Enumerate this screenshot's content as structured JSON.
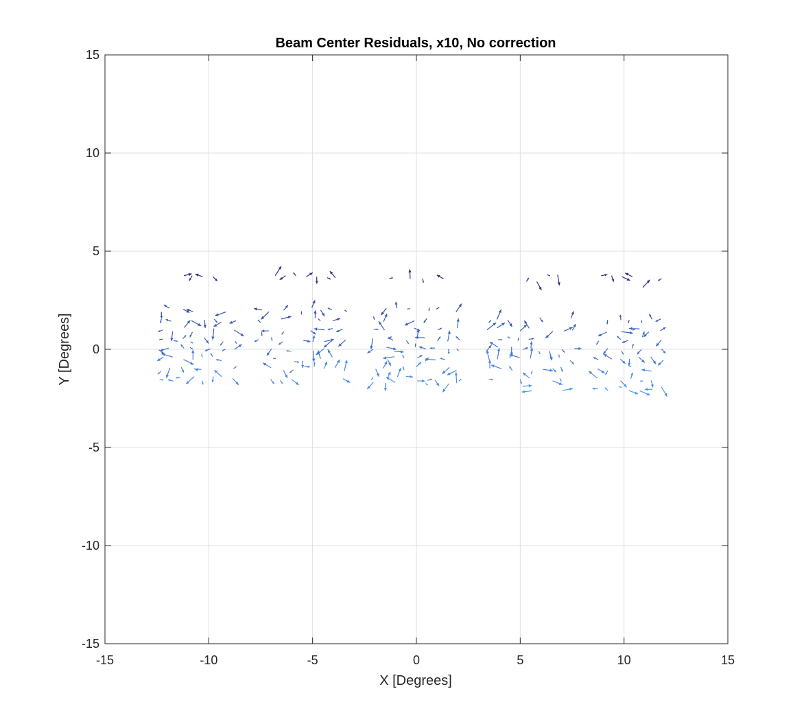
{
  "chart_data": {
    "type": "quiver",
    "title": "Beam Center Residuals, x10, No correction",
    "xlabel": "X [Degrees]",
    "ylabel": "Y [Degrees]",
    "xlim": [
      -15,
      15
    ],
    "ylim": [
      -15,
      15
    ],
    "xticks": [
      -15,
      -10,
      -5,
      0,
      5,
      10,
      15
    ],
    "yticks": [
      -15,
      -10,
      -5,
      0,
      5,
      10,
      15
    ],
    "xtick_labels": [
      "-15",
      "-10",
      "-5",
      "0",
      "5",
      "10",
      "15"
    ],
    "ytick_labels": [
      "-15",
      "-10",
      "-5",
      "0",
      "5",
      "10",
      "15"
    ],
    "grid": true,
    "scale_factor": 10,
    "color_top": "#2a2a7a",
    "color_bottom": "#4f9cff",
    "clusters": [
      {
        "columns": [
          -12.3,
          -11.8,
          -11.3,
          -10.8,
          -10.3,
          -9.8,
          -9.3,
          -8.8
        ],
        "rows": [
          2.0,
          1.5,
          1.0,
          0.5,
          0.0,
          -0.5,
          -1.0,
          -1.5
        ],
        "top_row": [
          [
            -11.2,
            3.75
          ],
          [
            -10.8,
            3.75
          ],
          [
            -10.3,
            3.7
          ],
          [
            -9.8,
            3.7
          ]
        ]
      },
      {
        "columns": [
          -7.5,
          -7.0,
          -6.5,
          -6.0,
          -5.5,
          -5.0,
          -4.5,
          -4.0,
          -3.5
        ],
        "rows": [
          2.0,
          1.5,
          1.0,
          0.5,
          0.0,
          -0.5,
          -1.0,
          -1.5
        ],
        "top_row": [
          [
            -6.8,
            3.75
          ],
          [
            -6.3,
            3.75
          ],
          [
            -5.8,
            3.75
          ],
          [
            -5.3,
            3.7
          ],
          [
            -4.8,
            3.7
          ],
          [
            -4.3,
            3.65
          ],
          [
            -3.9,
            3.65
          ]
        ]
      },
      {
        "columns": [
          -2.0,
          -1.5,
          -1.0,
          -0.5,
          0.0,
          0.5,
          1.0,
          1.5,
          2.0
        ],
        "rows": [
          2.0,
          1.5,
          1.0,
          0.5,
          0.0,
          -0.5,
          -1.0,
          -1.5,
          -1.8
        ],
        "top_row": [
          [
            -1.3,
            3.6
          ],
          [
            -0.3,
            3.6
          ],
          [
            0.3,
            3.6
          ],
          [
            1.3,
            3.6
          ]
        ]
      },
      {
        "columns": [
          3.5,
          4.0,
          4.5,
          5.0,
          5.5,
          6.0,
          6.5,
          7.0,
          7.5
        ],
        "rows": [
          1.5,
          1.0,
          0.5,
          0.0,
          -0.5,
          -1.0,
          -1.5,
          -2.0
        ],
        "top_row": [
          [
            5.3,
            3.45
          ],
          [
            5.8,
            3.45
          ],
          [
            6.3,
            3.8
          ],
          [
            6.8,
            3.8
          ]
        ]
      },
      {
        "columns": [
          8.8,
          9.3,
          9.8,
          10.3,
          10.8,
          11.3,
          11.8
        ],
        "rows": [
          1.5,
          1.0,
          0.5,
          0.0,
          -0.5,
          -1.0,
          -1.5,
          -2.0
        ],
        "top_row": [
          [
            8.9,
            3.75
          ],
          [
            9.4,
            3.75
          ],
          [
            9.9,
            3.7
          ],
          [
            10.4,
            3.7
          ],
          [
            10.9,
            3.15
          ],
          [
            11.8,
            3.6
          ]
        ]
      }
    ]
  }
}
